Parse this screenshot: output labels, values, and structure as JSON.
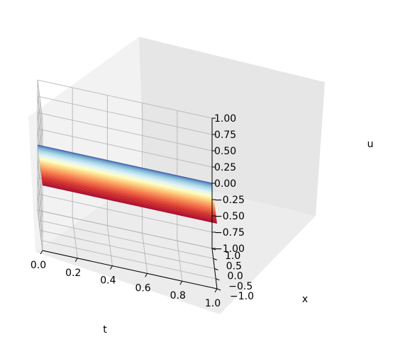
{
  "chart_data": {
    "type": "surface3d",
    "title": "",
    "xlabel": "t",
    "ylabel": "x",
    "zlabel": "u",
    "t_range": [
      0.0,
      1.0
    ],
    "x_range": [
      -1.0,
      1.0
    ],
    "z_range": [
      -1.0,
      1.0
    ],
    "t_ticks": [
      "0.0",
      "0.2",
      "0.4",
      "0.6",
      "0.8",
      "1.0"
    ],
    "x_ticks": [
      "−1.0",
      "−0.5",
      "0.0",
      "0.5",
      "1.0"
    ],
    "z_ticks": [
      "−1.00",
      "−0.75",
      "−0.50",
      "−0.25",
      "0.00",
      "0.25",
      "0.50",
      "0.75",
      "1.00"
    ],
    "surface": "u(t,x) = 0 (flat plane)",
    "colormap": "RdYlBu",
    "grid": true
  }
}
